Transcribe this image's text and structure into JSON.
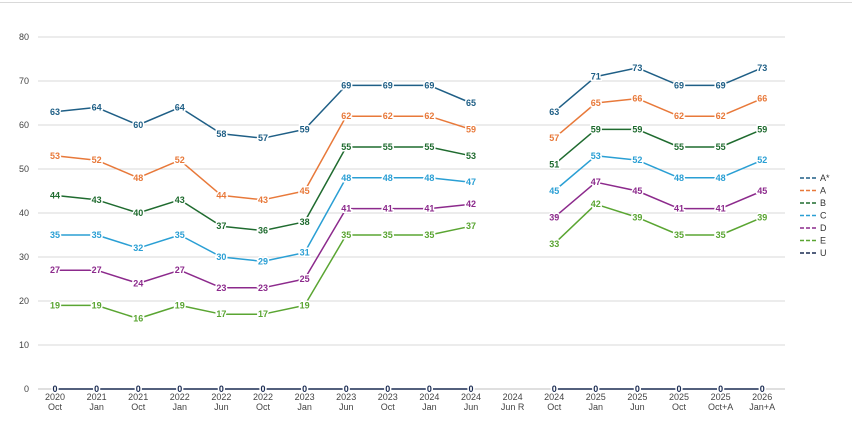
{
  "chart_data": {
    "type": "line",
    "x": [
      "2020\nOct",
      "2021\nJan",
      "2021\nOct",
      "2022\nJan",
      "2022\nJun",
      "2022\nOct",
      "2023\nJan",
      "2023\nJun",
      "2023\nOct",
      "2024\nJan",
      "2024\nJun",
      "2024\nJun R",
      "2024\nOct",
      "2025\nJan",
      "2025\nJun",
      "2025\nOct",
      "2025\nOct+A",
      "2026\nJan+A"
    ],
    "ylim": [
      0,
      80
    ],
    "yticks": [
      0,
      10,
      20,
      30,
      40,
      50,
      60,
      70,
      80
    ],
    "grid": true,
    "legend_position": "right",
    "series": [
      {
        "name": "A*",
        "color": "#1f5f86",
        "values": [
          63,
          64,
          60,
          64,
          58,
          57,
          59,
          69,
          69,
          69,
          65,
          null,
          63,
          71,
          73,
          69,
          69,
          73
        ]
      },
      {
        "name": "A",
        "color": "#e8793a",
        "values": [
          53,
          52,
          48,
          52,
          44,
          43,
          45,
          62,
          62,
          62,
          59,
          null,
          57,
          65,
          66,
          62,
          62,
          66
        ]
      },
      {
        "name": "B",
        "color": "#1f6b2f",
        "values": [
          44,
          43,
          40,
          43,
          37,
          36,
          38,
          55,
          55,
          55,
          53,
          null,
          51,
          59,
          59,
          55,
          55,
          59
        ]
      },
      {
        "name": "C",
        "color": "#2a9fd4",
        "values": [
          35,
          35,
          32,
          35,
          30,
          29,
          31,
          48,
          48,
          48,
          47,
          null,
          45,
          53,
          52,
          48,
          48,
          52
        ]
      },
      {
        "name": "D",
        "color": "#8c2a8c",
        "values": [
          27,
          27,
          24,
          27,
          23,
          23,
          25,
          41,
          41,
          41,
          42,
          null,
          39,
          47,
          45,
          41,
          41,
          45
        ]
      },
      {
        "name": "E",
        "color": "#5aa532",
        "values": [
          19,
          19,
          16,
          19,
          17,
          17,
          19,
          35,
          35,
          35,
          37,
          null,
          33,
          42,
          39,
          35,
          35,
          39
        ]
      },
      {
        "name": "U",
        "color": "#1a2b52",
        "values": [
          0,
          0,
          0,
          0,
          0,
          0,
          0,
          0,
          0,
          0,
          0,
          null,
          0,
          0,
          0,
          0,
          0,
          0
        ]
      }
    ]
  }
}
